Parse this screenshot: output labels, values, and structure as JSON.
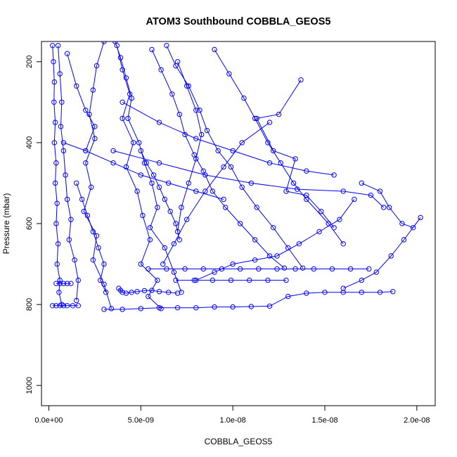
{
  "chart_data": {
    "type": "line",
    "title": "ATOM3 Southbound COBBLA_GEOS5",
    "xlabel": "COBBLA_GEOS5",
    "ylabel": "Pressure (mbar)",
    "xlim": [
      -4e-10,
      2.1e-08
    ],
    "ylim": [
      1050,
      150
    ],
    "y_reversed": true,
    "x_ticks": [
      0,
      5e-09,
      1e-08,
      1.5e-08,
      2e-08
    ],
    "x_tick_labels": [
      "0.0e+00",
      "5.0e-09",
      "1.0e-08",
      "1.5e-08",
      "2.0e-08"
    ],
    "y_ticks": [
      200,
      400,
      600,
      800,
      1000
    ],
    "y_tick_labels": [
      "200",
      "400",
      "600",
      "800",
      "1000"
    ],
    "series_color": "#0000ff",
    "marker": "open-circle",
    "grid": false,
    "legend": "none",
    "series": [
      {
        "x": [
          2e-10,
          2.5e-10,
          3e-10,
          2.8e-10,
          3.5e-10,
          3e-10,
          4e-10,
          3.5e-10,
          4.5e-10,
          4e-10,
          5e-10,
          4.5e-10,
          6e-10,
          5.5e-10,
          7e-10
        ],
        "y": [
          160,
          200,
          250,
          300,
          350,
          400,
          450,
          500,
          550,
          600,
          650,
          700,
          740,
          770,
          800
        ]
      },
      {
        "x": [
          5e-10,
          6e-10,
          7e-10,
          6.5e-10,
          8e-10,
          9e-10,
          1e-09,
          1.2e-09,
          1.1e-09,
          1.4e-09,
          1.6e-09,
          1.5e-09
        ],
        "y": [
          160,
          230,
          300,
          360,
          420,
          480,
          540,
          590,
          640,
          690,
          740,
          790
        ]
      },
      {
        "x": [
          3e-09,
          2.6e-09,
          2.4e-09,
          2.2e-09,
          2.5e-09,
          2e-09,
          2.3e-09,
          1.9e-09,
          2.6e-09,
          2.4e-09,
          3e-09,
          3.4e-09
        ],
        "y": [
          150,
          210,
          270,
          330,
          390,
          450,
          510,
          570,
          630,
          690,
          750,
          810
        ]
      },
      {
        "x": [
          3.6e-09,
          3.9e-09,
          4.2e-09,
          4.5e-09,
          4.3e-09,
          4.9e-09,
          5.2e-09,
          5.6e-09,
          5.9e-09,
          5.5e-09,
          6.3e-09,
          6.8e-09,
          7.2e-09
        ],
        "y": [
          150,
          190,
          240,
          290,
          340,
          400,
          450,
          500,
          560,
          610,
          660,
          720,
          770
        ]
      },
      {
        "x": [
          3.7e-09,
          4e-09,
          4.4e-09,
          4e-09,
          4.6e-09,
          4.2e-09,
          4.8e-09,
          5.1e-09,
          5.5e-09,
          5e-09,
          5.9e-09,
          5.4e-09,
          6.1e-09
        ],
        "y": [
          160,
          220,
          280,
          340,
          400,
          460,
          520,
          580,
          640,
          700,
          740,
          780,
          810
        ]
      },
      {
        "x": [
          5.6e-09,
          6.1e-09,
          6.7e-09,
          7.1e-09,
          7.4e-09,
          7.9e-09,
          8.4e-09,
          8.9e-09,
          9.6e-09,
          1.04e-08,
          1.12e-08,
          1.2e-08,
          1.28e-08
        ],
        "y": [
          170,
          220,
          280,
          330,
          380,
          430,
          470,
          520,
          560,
          600,
          640,
          680,
          710
        ]
      },
      {
        "x": [
          6.4e-09,
          6.9e-09,
          7.6e-09,
          8.2e-09,
          8.6e-09,
          9.2e-09,
          9.9e-09,
          1.05e-08,
          1.13e-08,
          1.22e-08,
          1.3e-08,
          1.38e-08
        ],
        "y": [
          160,
          210,
          260,
          320,
          370,
          420,
          460,
          510,
          560,
          610,
          660,
          710
        ]
      },
      {
        "x": [
          9e-09,
          9.8e-09,
          1.06e-08,
          1.12e-08,
          1.19e-08,
          1.26e-08,
          1.33e-08,
          1.4e-08,
          1.52e-08,
          1.6e-08
        ],
        "y": [
          170,
          230,
          290,
          340,
          400,
          450,
          500,
          540,
          600,
          650
        ]
      },
      {
        "x": [
          1.37e-08,
          1.25e-08,
          1.13e-08,
          1.22e-08,
          1.34e-08,
          1.29e-08,
          1.4e-08,
          1.48e-08,
          1.55e-08
        ],
        "y": [
          245,
          330,
          340,
          420,
          440,
          520,
          530,
          570,
          610
        ]
      },
      {
        "x": [
          1.7e-08,
          1.8e-08,
          1.85e-08,
          1.92e-08,
          1.98e-08,
          2.02e-08,
          1.93e-08,
          1.86e-08,
          1.78e-08,
          1.7e-08,
          1.6e-08
        ],
        "y": [
          500,
          520,
          560,
          600,
          610,
          585,
          640,
          680,
          720,
          740,
          760
        ]
      },
      {
        "x": [
          1.66e-08,
          1.58e-08,
          1.47e-08,
          1.36e-08,
          1.24e-08,
          1.12e-08,
          1e-08,
          9e-09,
          8e-09
        ],
        "y": [
          540,
          590,
          620,
          650,
          680,
          690,
          700,
          720,
          740
        ]
      },
      {
        "x": [
          3e-09,
          4e-09,
          5e-09,
          6e-09,
          7e-09,
          8e-09,
          9e-09,
          1e-08,
          1.1e-08,
          1.2e-08,
          1.3e-08,
          1.4e-08,
          1.5e-08,
          1.6e-08,
          1.7e-08,
          1.8e-08,
          1.87e-08
        ],
        "y": [
          812,
          812,
          810,
          808,
          808,
          808,
          806,
          806,
          805,
          804,
          780,
          772,
          770,
          770,
          770,
          770,
          768
        ]
      },
      {
        "x": [
          5.4e-09,
          6.4e-09,
          7.4e-09,
          8.4e-09,
          9.4e-09,
          1.04e-08,
          1.14e-08,
          1.24e-08,
          1.34e-08,
          1.44e-08,
          1.54e-08,
          1.64e-08,
          1.74e-08
        ],
        "y": [
          712,
          712,
          712,
          712,
          712,
          712,
          712,
          712,
          712,
          712,
          712,
          712,
          712
        ]
      },
      {
        "x": [
          6.9e-09,
          7.9e-09,
          8.9e-09,
          9.9e-09,
          1.09e-08,
          1.19e-08,
          1.29e-08
        ],
        "y": [
          740,
          740,
          740,
          740,
          740,
          740,
          740
        ]
      },
      {
        "x": [
          3.8e-09,
          3.9e-09,
          4e-09,
          4.2e-09,
          4.5e-09,
          4.8e-09,
          5.2e-09,
          5.6e-09,
          6e-09,
          6.5e-09,
          7e-09
        ],
        "y": [
          760,
          765,
          770,
          772,
          770,
          768,
          766,
          765,
          768,
          770,
          772
        ]
      },
      {
        "x": [
          2e-10,
          4e-10,
          6e-10,
          8e-10,
          1e-09,
          1.3e-09,
          1.6e-09
        ],
        "y": [
          803,
          803,
          803,
          803,
          803,
          803,
          803
        ]
      },
      {
        "x": [
          4e-10,
          6e-10,
          8e-10,
          1e-09,
          1.2e-09
        ],
        "y": [
          748,
          748,
          748,
          748,
          748
        ]
      },
      {
        "x": [
          1e-09,
          1.5e-09,
          2e-09,
          2.5e-09,
          2e-09
        ],
        "y": [
          180,
          260,
          320,
          360,
          420
        ]
      },
      {
        "x": [
          1.5e-09,
          1.8e-09,
          2.1e-09,
          2.4e-09,
          2.7e-09,
          3e-09,
          2.8e-09,
          3.1e-09
        ],
        "y": [
          500,
          540,
          580,
          620,
          660,
          700,
          740,
          770
        ]
      },
      {
        "x": [
          3.5e-09,
          6e-09,
          8.5e-09,
          1.1e-08,
          1.35e-08,
          1.6e-08,
          1.75e-08,
          1.82e-08
        ],
        "y": [
          420,
          450,
          480,
          500,
          515,
          520,
          530,
          560
        ]
      },
      {
        "x": [
          4e-09,
          6e-09,
          8e-09,
          1e-08,
          1.2e-08,
          1.4e-08,
          1.55e-08
        ],
        "y": [
          300,
          350,
          390,
          420,
          450,
          470,
          480
        ]
      },
      {
        "x": [
          7e-09,
          7.5e-09,
          8e-09,
          8.3e-09,
          8e-09,
          7.6e-09,
          7.2e-09,
          7e-09
        ],
        "y": [
          200,
          260,
          320,
          380,
          440,
          500,
          560,
          620
        ]
      },
      {
        "x": [
          5e-09,
          5.3e-09,
          5.7e-09,
          6e-09,
          6.3e-09,
          6.6e-09,
          6.9e-09,
          7.1e-09
        ],
        "y": [
          420,
          450,
          480,
          510,
          540,
          570,
          600,
          640
        ]
      },
      {
        "x": [
          1.2e-08,
          1.05e-08,
          9.5e-09,
          8.5e-09,
          7.5e-09,
          6.8e-09,
          6.2e-09
        ],
        "y": [
          350,
          400,
          460,
          520,
          590,
          650,
          700
        ]
      },
      {
        "x": [
          8e-10,
          2e-09,
          3.5e-09,
          5e-09,
          6.5e-09,
          8e-09,
          9.5e-09
        ],
        "y": [
          400,
          420,
          450,
          480,
          500,
          520,
          540
        ]
      }
    ]
  }
}
